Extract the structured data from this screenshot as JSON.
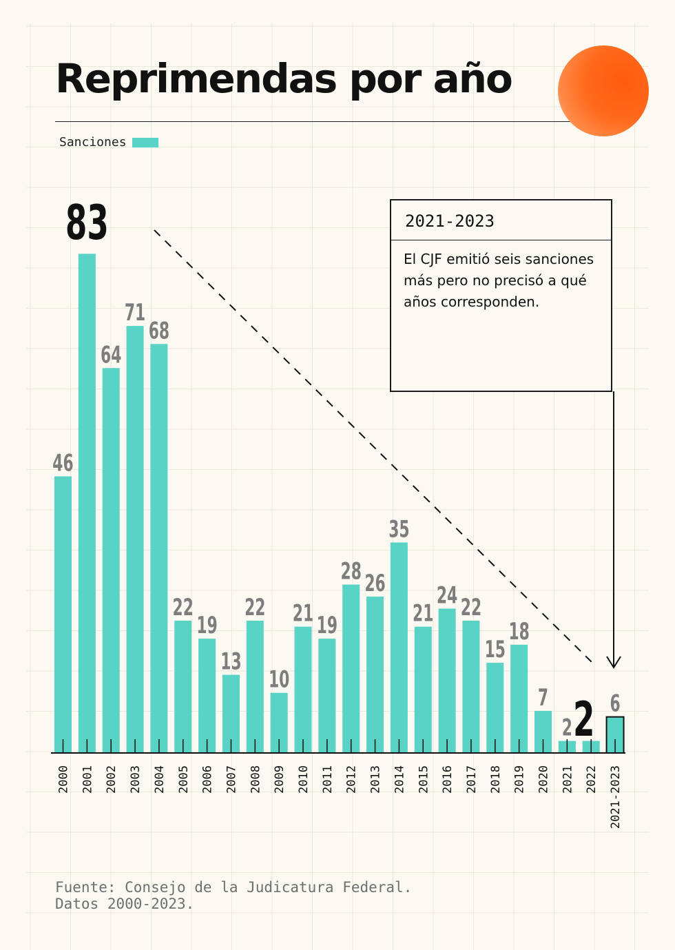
{
  "title": "Reprimendas por año",
  "legend": {
    "label": "Sanciones",
    "color": "#58d3c5"
  },
  "annotation": {
    "heading": "2021-2023",
    "body": "El CJF emitió seis sanciones más pero no precisó a qué años corresponden."
  },
  "source": {
    "line1": "Fuente: Consejo de la Judicatura Federal.",
    "line2": "Datos 2000-2023."
  },
  "colors": {
    "bar": "#58d3c5",
    "accent": "#ff6a1c",
    "label": "#7d7d7d",
    "highlight": "#111111"
  },
  "chart_data": {
    "type": "bar",
    "title": "Reprimendas por año",
    "xlabel": "",
    "ylabel": "",
    "ylim": [
      0,
      85
    ],
    "grid": true,
    "legend_position": "top-left",
    "categories": [
      "2000",
      "2001",
      "2002",
      "2003",
      "2004",
      "2005",
      "2006",
      "2007",
      "2008",
      "2009",
      "2010",
      "2011",
      "2012",
      "2013",
      "2014",
      "2015",
      "2016",
      "2017",
      "2018",
      "2019",
      "2020",
      "2021",
      "2022",
      "2021-2023"
    ],
    "series": [
      {
        "name": "Sanciones",
        "values": [
          46,
          83,
          64,
          71,
          68,
          22,
          19,
          13,
          22,
          10,
          21,
          19,
          28,
          26,
          35,
          21,
          24,
          22,
          15,
          18,
          7,
          2,
          2,
          6
        ]
      }
    ],
    "data_labels": [
      "46",
      "83",
      "64",
      "71",
      "68",
      "22",
      "19",
      "13",
      "22",
      "10",
      "21",
      "19",
      "28",
      "26",
      "35",
      "21",
      "24",
      "22",
      "15",
      "18",
      "7",
      "2",
      "2",
      "6"
    ],
    "highlighted_labels": [
      "2001",
      "2022"
    ],
    "outlined_bar": "2021-2023"
  }
}
